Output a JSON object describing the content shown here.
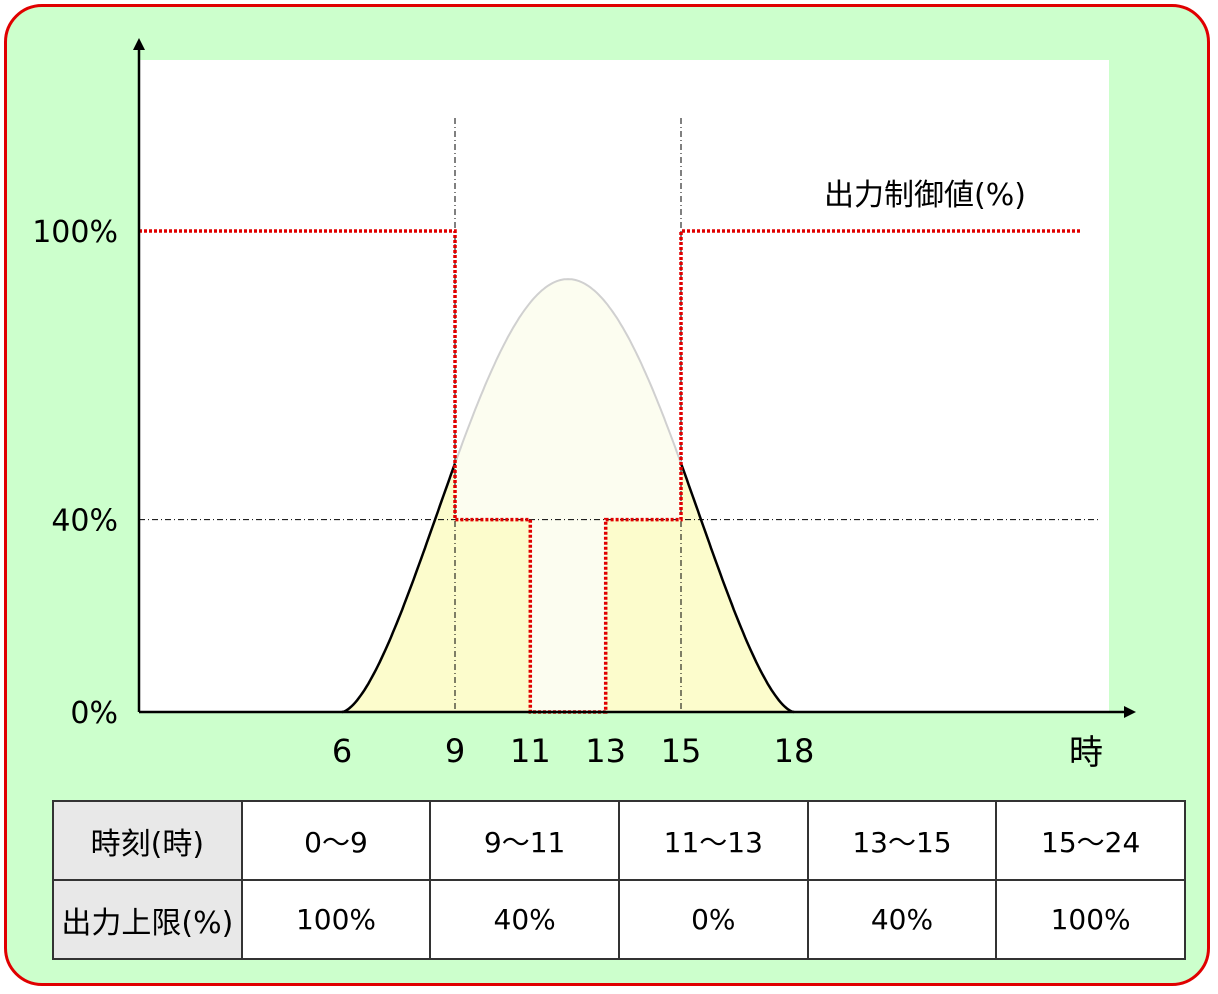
{
  "chart_data": {
    "type": "line",
    "x_unit_label": "時",
    "x_ticks": [
      6,
      9,
      11,
      13,
      15,
      18
    ],
    "y_ticks": [
      {
        "value": 0,
        "label": "0%"
      },
      {
        "value": 40,
        "label": "40%"
      },
      {
        "value": 100,
        "label": "100%"
      }
    ],
    "xlim": [
      0,
      24
    ],
    "ylim": [
      0,
      100
    ],
    "reference_lines": {
      "vertical_x": [
        9,
        15
      ],
      "horizontal_y": [
        40
      ]
    },
    "series": [
      {
        "name": "出力制御値(%)",
        "style": "dotted-step",
        "color": "#e00000",
        "x": [
          0,
          9,
          9,
          11,
          11,
          13,
          13,
          15,
          15,
          24
        ],
        "y": [
          100,
          100,
          40,
          40,
          0,
          0,
          40,
          40,
          100,
          100
        ]
      },
      {
        "style": "generation-curve",
        "color_outline": "#000000",
        "color_clipped": "#d0d0d0",
        "fill_actual": "#fcfccc",
        "fill_curtailed": "#fcfdf0",
        "x": [
          6,
          7,
          8,
          9,
          10,
          11,
          12,
          13,
          14,
          15,
          16,
          17,
          18
        ],
        "y": [
          0,
          13,
          36,
          51,
          75,
          87,
          90,
          87,
          75,
          51,
          36,
          13,
          0
        ]
      }
    ]
  },
  "schedule_table": {
    "row_headers": [
      "時刻(時)",
      "出力上限(%)"
    ],
    "time_ranges": [
      "0〜9",
      "9〜11",
      "11〜13",
      "13〜15",
      "15〜24"
    ],
    "output_limits": [
      "100%",
      "40%",
      "0%",
      "40%",
      "100%"
    ]
  },
  "colors": {
    "frame_border": "#e00000",
    "frame_background": "#ccffcc",
    "plot_background": "#ffffff"
  }
}
